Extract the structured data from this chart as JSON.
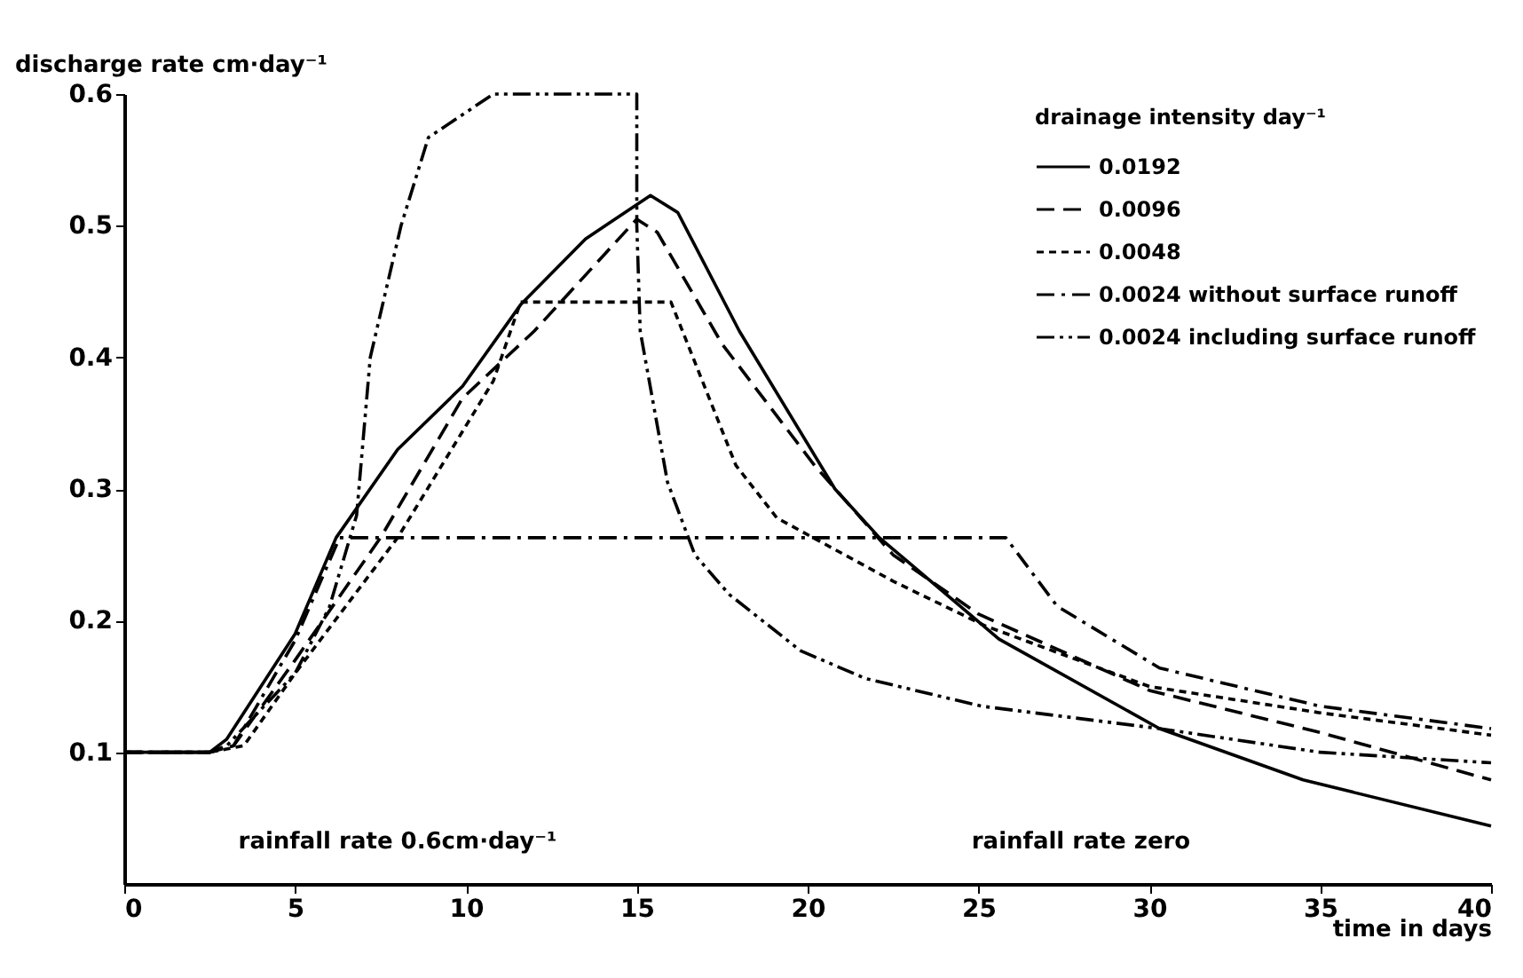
{
  "chart_data": {
    "type": "line",
    "xlabel": "time in days",
    "ylabel": "discharge rate  cm·day⁻¹",
    "legend_title": "drainage intensity day⁻¹",
    "xlim": [
      0,
      40
    ],
    "xticks": [
      0,
      5,
      10,
      15,
      20,
      25,
      30,
      35,
      40
    ],
    "ylim": [
      0,
      0.6
    ],
    "yticks": [
      0.1,
      0.2,
      0.3,
      0.4,
      0.5,
      0.6
    ],
    "grid": false,
    "legend": "top right",
    "marker": "none",
    "series": [
      {
        "name": "0.0192",
        "color": "#000000",
        "line_style": "solid",
        "x": [
          0,
          2.5,
          3,
          5,
          6.2,
          8,
          9.9,
          11.6,
          13.5,
          15.4,
          16.2,
          18,
          20.8,
          22.1,
          25.6,
          30.3,
          34.5,
          40
        ],
        "values": [
          0.1,
          0.1,
          0.11,
          0.19,
          0.263,
          0.33,
          0.378,
          0.44,
          0.49,
          0.523,
          0.51,
          0.42,
          0.3,
          0.263,
          0.186,
          0.118,
          0.079,
          0.044
        ]
      },
      {
        "name": "0.0096",
        "color": "#000000",
        "line_style": "dashed",
        "x": [
          0,
          2.5,
          3.2,
          5,
          7.5,
          9.9,
          12,
          15,
          15.6,
          17.5,
          20.2,
          22.5,
          25,
          30,
          35,
          40
        ],
        "values": [
          0.1,
          0.1,
          0.105,
          0.17,
          0.263,
          0.369,
          0.42,
          0.505,
          0.495,
          0.41,
          0.318,
          0.25,
          0.205,
          0.147,
          0.115,
          0.079
        ]
      },
      {
        "name": "0.0048",
        "color": "#000000",
        "line_style": "dotted",
        "x": [
          0,
          2.5,
          3.5,
          5,
          8,
          10.8,
          11.6,
          16,
          17.9,
          19.1,
          22.5,
          25.2,
          30,
          35,
          40
        ],
        "values": [
          0.1,
          0.1,
          0.105,
          0.16,
          0.263,
          0.382,
          0.442,
          0.442,
          0.318,
          0.278,
          0.23,
          0.196,
          0.15,
          0.13,
          0.113
        ]
      },
      {
        "name": "0.0024 without surface runoff",
        "color": "#000000",
        "line_style": "dashdot",
        "x": [
          0,
          2.5,
          3.2,
          5,
          6.3,
          25.8,
          27.3,
          30.3,
          35,
          40
        ],
        "values": [
          0.1,
          0.1,
          0.105,
          0.185,
          0.263,
          0.263,
          0.211,
          0.164,
          0.135,
          0.118
        ]
      },
      {
        "name": "0.0024 including surface runoff",
        "color": "#000000",
        "line_style": "dashdotdot",
        "x": [
          0,
          2.5,
          3,
          5,
          6,
          6.8,
          7.2,
          8.1,
          8.9,
          10.8,
          15,
          15,
          15.1,
          15.9,
          16.7,
          17.7,
          19.8,
          21.7,
          25.1,
          30.3,
          35,
          40
        ],
        "values": [
          0.1,
          0.1,
          0.105,
          0.16,
          0.21,
          0.28,
          0.4,
          0.5,
          0.567,
          0.6,
          0.6,
          0.5,
          0.42,
          0.305,
          0.25,
          0.22,
          0.177,
          0.156,
          0.135,
          0.118,
          0.1,
          0.092
        ]
      }
    ],
    "annotations": [
      "rainfall rate 0.6cm·day⁻¹",
      "rainfall rate zero"
    ]
  }
}
